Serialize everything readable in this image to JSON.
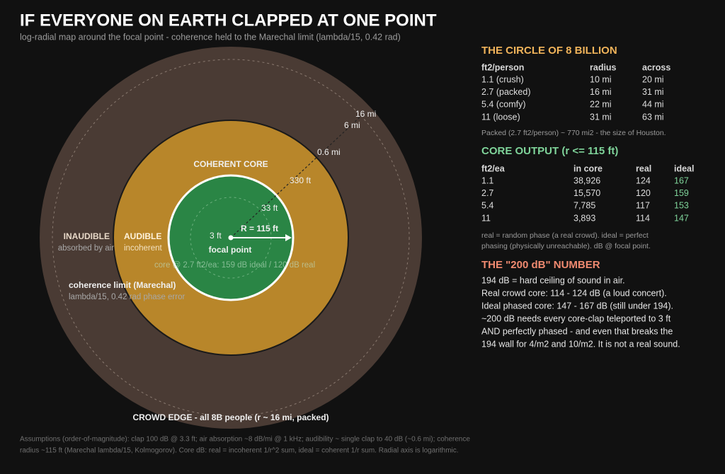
{
  "header": {
    "title": "IF EVERYONE ON EARTH CLAPPED AT ONE POINT",
    "subtitle": "log-radial map around the focal point - coherence held to the Marechal limit (lambda/15, 0.42 rad)"
  },
  "map": {
    "rings": [
      "16 mi",
      "6 mi",
      "0.6 mi",
      "330 ft",
      "33 ft",
      "3 ft"
    ],
    "radius_label": "R = 115 ft",
    "focal_label": "focal point",
    "core_note": "core @ 2.7 ft2/ea: 159 dB ideal  /  120 dB real",
    "core_label": "COHERENT CORE",
    "inaudible": {
      "title": "INAUDIBLE",
      "note": "absorbed by air"
    },
    "audible": {
      "title": "AUDIBLE",
      "note": "incoherent"
    },
    "limit": {
      "title": "coherence limit (Marechal)",
      "note": "lambda/15, 0.42 rad phase error"
    },
    "crowd_edge": "CROWD EDGE - all 8B people (r ~ 16 mi, packed)"
  },
  "footnote": [
    "Assumptions (order-of-magnitude): clap 100 dB @ 3.3 ft; air absorption ~8 dB/mi @ 1 kHz; audibility ~ single clap to 40 dB (~0.6 mi); coherence",
    "radius ~115 ft (Marechal lambda/15, Kolmogorov). Core dB: real = incoherent 1/r^2 sum, ideal = coherent 1/r sum. Radial axis is logarithmic."
  ],
  "circle_section": {
    "heading": "THE CIRCLE OF 8 BILLION",
    "table": {
      "header": [
        "ft2/person",
        "radius",
        "across"
      ],
      "rows": [
        [
          "1.1 (crush)",
          "10 mi",
          "20 mi"
        ],
        [
          "2.7 (packed)",
          "16 mi",
          "31 mi"
        ],
        [
          "5.4 (comfy)",
          "22 mi",
          "44 mi"
        ],
        [
          "11 (loose)",
          "31 mi",
          "63 mi"
        ]
      ]
    },
    "note": "Packed (2.7 ft2/person) ~ 770 mi2 - the size of Houston."
  },
  "core_section": {
    "heading": "CORE OUTPUT  (r <= 115 ft)",
    "table": {
      "header": [
        "ft2/ea",
        "in core",
        "real",
        "ideal"
      ],
      "rows": [
        [
          "1.1",
          "38,926",
          "124",
          "167"
        ],
        [
          "2.7",
          "15,570",
          "120",
          "159"
        ],
        [
          "5.4",
          "7,785",
          "117",
          "153"
        ],
        [
          "11",
          "3,893",
          "114",
          "147"
        ]
      ]
    },
    "note": [
      "real = random phase (a real crowd).  ideal = perfect",
      "phasing (physically unreachable). dB @ focal point."
    ]
  },
  "db_section": {
    "heading": "THE \"200 dB\" NUMBER",
    "lines": [
      "194 dB = hard ceiling of sound in air.",
      "Real crowd core:  114 - 124 dB (a loud concert).",
      "Ideal phased core: 147 - 167 dB (still under 194).",
      "~200 dB needs every core-clap teleported to 3 ft",
      "AND perfectly phased - and even that breaks the",
      "194 wall for 4/m2 and 10/m2. It is not a real sound."
    ]
  }
}
